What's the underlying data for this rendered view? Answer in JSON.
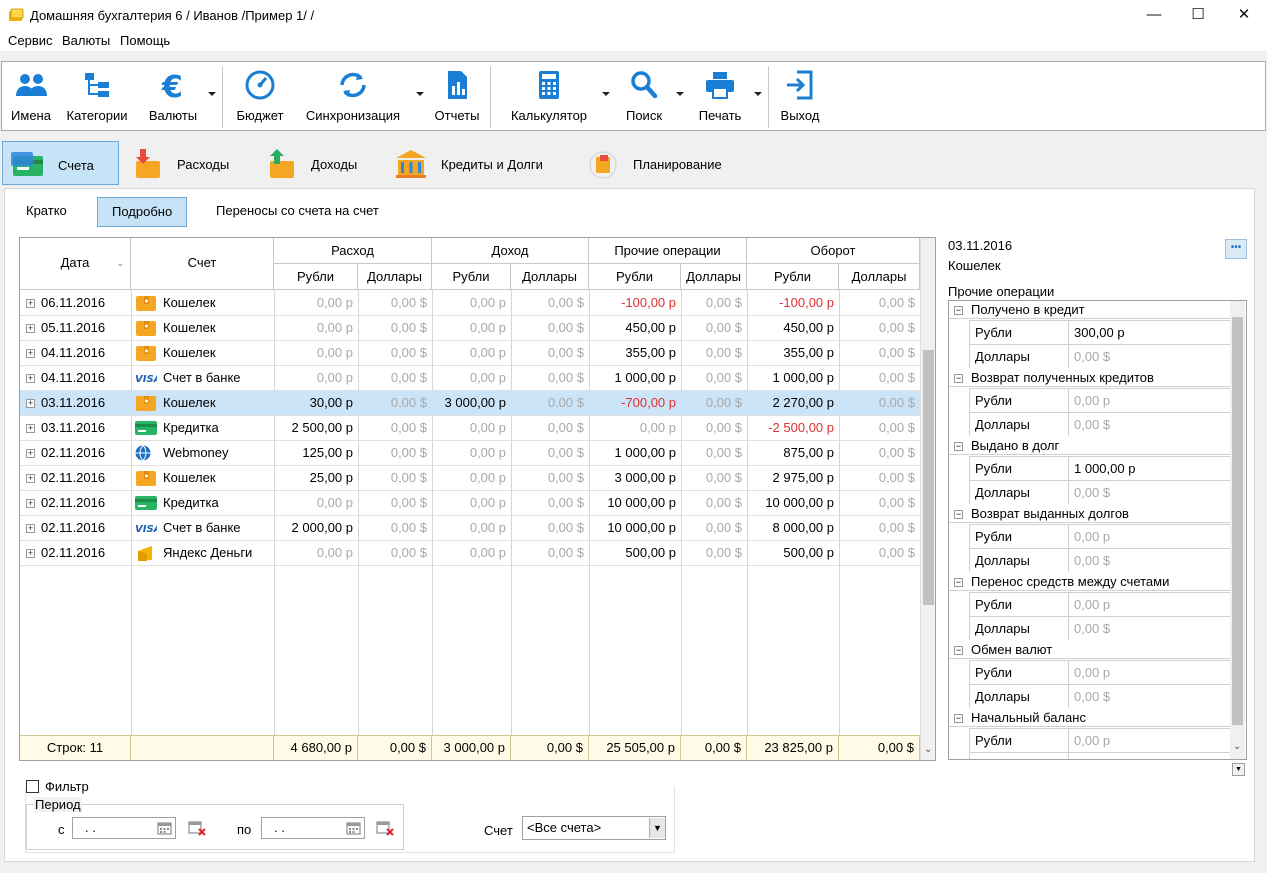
{
  "window": {
    "title": "Домашняя бухгалтерия 6  / Иванов /Пример 1/ /",
    "min": "—",
    "max": "☐",
    "close": "✕"
  },
  "menu": [
    "Сервис",
    "Валюты",
    "Помощь"
  ],
  "toolbar": {
    "names": "Имена",
    "categories": "Категории",
    "currencies": "Валюты",
    "budget": "Бюджет",
    "sync": "Синхронизация",
    "reports": "Отчеты",
    "calculator": "Калькулятор",
    "search": "Поиск",
    "print": "Печать",
    "exit": "Выход"
  },
  "modes": [
    "Счета",
    "Расходы",
    "Доходы",
    "Кредиты и Долги",
    "Планирование"
  ],
  "subtabs": [
    "Кратко",
    "Подробно",
    "Переносы со счета на счет"
  ],
  "grid": {
    "headers": {
      "date": "Дата",
      "account": "Счет",
      "expense": "Расход",
      "income": "Доход",
      "other": "Прочие операции",
      "turnover": "Оборот",
      "rub": "Рубли",
      "usd": "Доллары"
    },
    "rows": [
      {
        "date": "06.11.2016",
        "icon": "wallet",
        "account": "Кошелек",
        "v": [
          "0,00 р",
          "0,00 $",
          "0,00 р",
          "0,00 $",
          "-100,00 р",
          "0,00 $",
          "-100,00 р",
          "0,00 $"
        ]
      },
      {
        "date": "05.11.2016",
        "icon": "wallet",
        "account": "Кошелек",
        "v": [
          "0,00 р",
          "0,00 $",
          "0,00 р",
          "0,00 $",
          "450,00 р",
          "0,00 $",
          "450,00 р",
          "0,00 $"
        ]
      },
      {
        "date": "04.11.2016",
        "icon": "wallet",
        "account": "Кошелек",
        "v": [
          "0,00 р",
          "0,00 $",
          "0,00 р",
          "0,00 $",
          "355,00 р",
          "0,00 $",
          "355,00 р",
          "0,00 $"
        ]
      },
      {
        "date": "04.11.2016",
        "icon": "visa",
        "account": "Счет в банке",
        "v": [
          "0,00 р",
          "0,00 $",
          "0,00 р",
          "0,00 $",
          "1 000,00 р",
          "0,00 $",
          "1 000,00 р",
          "0,00 $"
        ]
      },
      {
        "date": "03.11.2016",
        "icon": "wallet",
        "account": "Кошелек",
        "v": [
          "30,00 р",
          "0,00 $",
          "3 000,00 р",
          "0,00 $",
          "-700,00 р",
          "0,00 $",
          "2 270,00 р",
          "0,00 $"
        ],
        "selected": true
      },
      {
        "date": "03.11.2016",
        "icon": "card",
        "account": "Кредитка",
        "v": [
          "2 500,00 р",
          "0,00 $",
          "0,00 р",
          "0,00 $",
          "0,00 р",
          "0,00 $",
          "-2 500,00 р",
          "0,00 $"
        ]
      },
      {
        "date": "02.11.2016",
        "icon": "globe",
        "account": "Webmoney",
        "v": [
          "125,00 р",
          "0,00 $",
          "0,00 р",
          "0,00 $",
          "1 000,00 р",
          "0,00 $",
          "875,00 р",
          "0,00 $"
        ]
      },
      {
        "date": "02.11.2016",
        "icon": "wallet",
        "account": "Кошелек",
        "v": [
          "25,00 р",
          "0,00 $",
          "0,00 р",
          "0,00 $",
          "3 000,00 р",
          "0,00 $",
          "2 975,00 р",
          "0,00 $"
        ]
      },
      {
        "date": "02.11.2016",
        "icon": "card",
        "account": "Кредитка",
        "v": [
          "0,00 р",
          "0,00 $",
          "0,00 р",
          "0,00 $",
          "10 000,00 р",
          "0,00 $",
          "10 000,00 р",
          "0,00 $"
        ]
      },
      {
        "date": "02.11.2016",
        "icon": "visa",
        "account": "Счет в банке",
        "v": [
          "2 000,00 р",
          "0,00 $",
          "0,00 р",
          "0,00 $",
          "10 000,00 р",
          "0,00 $",
          "8 000,00 р",
          "0,00 $"
        ]
      },
      {
        "date": "02.11.2016",
        "icon": "yandex",
        "account": "Яндекс Деньги",
        "v": [
          "0,00 р",
          "0,00 $",
          "0,00 р",
          "0,00 $",
          "500,00 р",
          "0,00 $",
          "500,00 р",
          "0,00 $"
        ]
      }
    ],
    "footer": {
      "rows_label": "Строк: 11",
      "v": [
        "4 680,00 р",
        "0,00 $",
        "3 000,00 р",
        "0,00 $",
        "25 505,00 р",
        "0,00 $",
        "23 825,00 р",
        "0,00 $"
      ]
    }
  },
  "details": {
    "date": "03.11.2016",
    "account": "Кошелек",
    "more": "•••",
    "section": "Прочие операции",
    "groups": [
      {
        "title": "Получено в кредит",
        "rub": "300,00 р",
        "usd": "0,00 $"
      },
      {
        "title": "Возврат полученных кредитов",
        "rub": "0,00 р",
        "usd": "0,00 $"
      },
      {
        "title": "Выдано в долг",
        "rub": "1 000,00 р",
        "usd": "0,00 $"
      },
      {
        "title": "Возврат выданных долгов",
        "rub": "0,00 р",
        "usd": "0,00 $"
      },
      {
        "title": "Перенос средств между счетами",
        "rub": "0,00 р",
        "usd": "0,00 $"
      },
      {
        "title": "Обмен валют",
        "rub": "0,00 р",
        "usd": "0,00 $"
      },
      {
        "title": "Начальный баланс",
        "rub": "0,00 р",
        "usd": ""
      }
    ],
    "rub_label": "Рубли",
    "usd_label": "Доллары"
  },
  "filter": {
    "label": "Фильтр",
    "period": "Период",
    "from": "с",
    "to": "по",
    "date_mask": ". .",
    "account_label": "Счет",
    "account_value": "<Все счета>"
  }
}
